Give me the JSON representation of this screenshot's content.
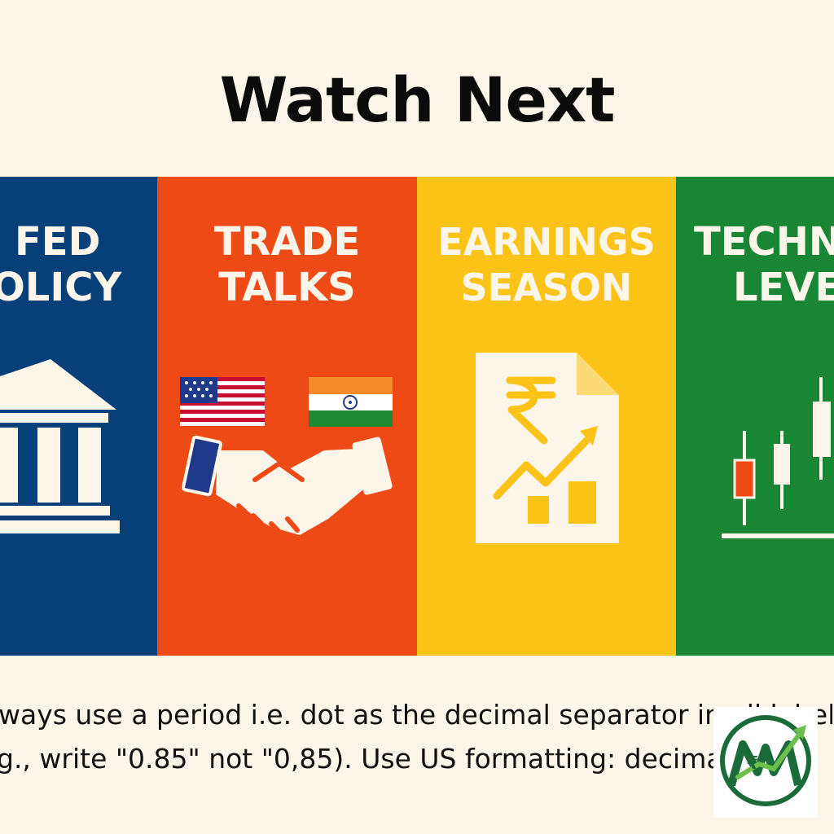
{
  "title": "Watch Next",
  "panels": [
    {
      "line1": "FED",
      "line2": "OLICY",
      "color": "#073f78",
      "icon": "bank-building-icon"
    },
    {
      "line1": "TRADE",
      "line2": "TALKS",
      "color": "#ee4a16",
      "icon": "handshake-flags-icon"
    },
    {
      "line1": "EARNINGS",
      "line2": "SEASON",
      "color": "#fbc217",
      "icon": "rupee-report-icon"
    },
    {
      "line1": "TECHN",
      "line2": "LEVE",
      "color": "#188634",
      "icon": "candlestick-chart-icon"
    }
  ],
  "caption": {
    "line1": "ways use a period i.e. dot as the decimal separator in all label",
    "line2": "g., write \"0.85\" not \"0,85). Use US formatting: decimal         n"
  },
  "logo": {
    "icon": "rupee-growth-logo-icon"
  }
}
